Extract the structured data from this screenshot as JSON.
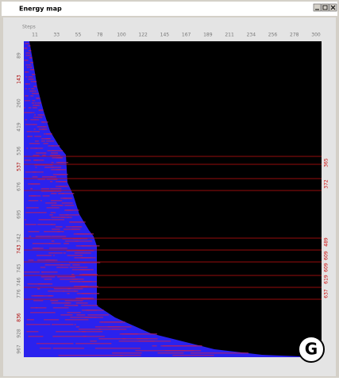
{
  "window": {
    "title": "Energy map"
  },
  "plot": {
    "x_axis_title": "Steps",
    "x_ticks": [
      "11",
      "33",
      "55",
      "78",
      "100",
      "122",
      "145",
      "167",
      "189",
      "211",
      "234",
      "256",
      "278",
      "300"
    ],
    "left_labels": [
      "89",
      "143",
      "260",
      "419",
      "536",
      "537",
      "676",
      "695",
      "742",
      "743",
      "745",
      "746",
      "776",
      "836",
      "928",
      "967"
    ],
    "right_labels": [
      "365",
      "372",
      "489",
      "609",
      "609",
      "619",
      "637"
    ]
  },
  "logo": "G"
}
